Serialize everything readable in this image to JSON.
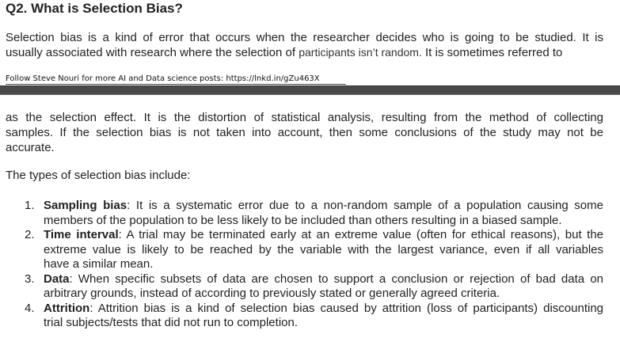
{
  "question": {
    "title": "Q2. What is Selection Bias?"
  },
  "paragraph1": {
    "line1": "Selection bias is a kind of error that occurs when the researcher decides who is going to be studied. It is",
    "line2_a": "usually associated with research where the selection of ",
    "line2_b": "participants isn’t random.",
    "line2_c": " It is sometimes referred to"
  },
  "footer": {
    "text": "Follow Steve Nouri for more AI and Data science posts: https://lnkd.in/gZu463X"
  },
  "paragraph2": {
    "line1": "as the selection effect. It is the distortion of statistical analysis, resulting from the method of collecting",
    "line2": "samples. If the selection bias is not taken into account, then some conclusions of the study may not be",
    "line3": "accurate."
  },
  "intro": "The types of selection bias include:",
  "types": [
    {
      "number": "1.",
      "term": "Sampling bias",
      "lines": [
        ": It is a systematic error due to a non-random sample of a population causing some",
        "members of the population to be less likely to be included than others resulting in a biased sample."
      ]
    },
    {
      "number": "2.",
      "term": "Time interval",
      "lines": [
        ": A trial may be terminated early at an extreme value (often for ethical reasons), but the",
        "extreme value is likely to be reached by the variable with the largest variance, even if all variables",
        "have a similar mean."
      ]
    },
    {
      "number": "3.",
      "term": "Data",
      "lines": [
        ": When specific subsets of data are chosen to support a conclusion or rejection of bad data on",
        "arbitrary grounds, instead of according to previously stated or generally agreed criteria."
      ]
    },
    {
      "number": "4.",
      "term": "Attrition",
      "lines": [
        ": Attrition bias is a kind of selection bias caused by attrition (loss of participants) discounting",
        "trial subjects/tests that did not run to completion."
      ]
    }
  ]
}
